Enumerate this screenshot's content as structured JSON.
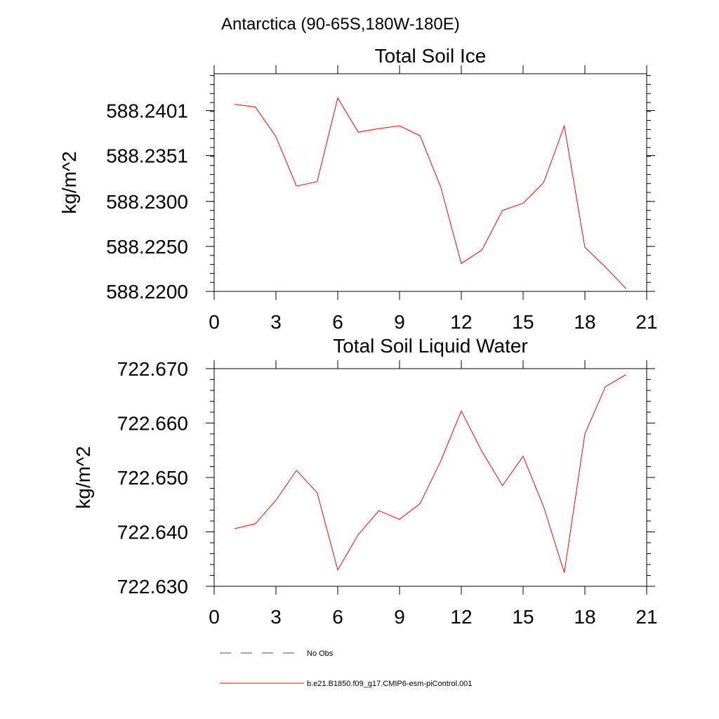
{
  "figure": {
    "title": "Antarctica (90-65S,180W-180E)"
  },
  "chart_data": [
    {
      "type": "line",
      "title": "Total Soil Ice",
      "xlabel": "",
      "ylabel": "kg/m^2",
      "xlim": [
        0,
        21
      ],
      "ylim": [
        588.22,
        588.2442
      ],
      "x_ticks": [
        0,
        3,
        6,
        9,
        12,
        15,
        18,
        21
      ],
      "x_tick_labels": [
        "0",
        "3",
        "6",
        "9",
        "12",
        "15",
        "18",
        "21"
      ],
      "y_ticks": [
        588.22,
        588.225,
        588.23,
        588.2351,
        588.2401
      ],
      "y_tick_labels": [
        "588.2200",
        "588.2250",
        "588.2300",
        "588.2351",
        "588.2401"
      ],
      "x": [
        1,
        2,
        3,
        4,
        5,
        6,
        7,
        8,
        9,
        10,
        11,
        12,
        13,
        14,
        15,
        16,
        17,
        18,
        19,
        20
      ],
      "series": [
        {
          "name": "b.e21.B1850.f09_g17.CMIP6-esm-piControl.001",
          "color": "#ff0000",
          "values": [
            588.2408,
            588.2405,
            588.2372,
            588.2317,
            588.2322,
            588.2415,
            588.2377,
            588.2381,
            588.2384,
            588.2373,
            588.2316,
            588.2231,
            588.2246,
            588.229,
            588.2298,
            588.2321,
            588.2384,
            588.2249,
            588.2227,
            588.2203
          ]
        }
      ]
    },
    {
      "type": "line",
      "title": "Total Soil Liquid Water",
      "xlabel": "",
      "ylabel": "kg/m^2",
      "xlim": [
        0,
        21
      ],
      "ylim": [
        722.63,
        722.67
      ],
      "x_ticks": [
        0,
        3,
        6,
        9,
        12,
        15,
        18,
        21
      ],
      "x_tick_labels": [
        "0",
        "3",
        "6",
        "9",
        "12",
        "15",
        "18",
        "21"
      ],
      "y_ticks": [
        722.63,
        722.64,
        722.65,
        722.66,
        722.67
      ],
      "y_tick_labels": [
        "722.630",
        "722.640",
        "722.650",
        "722.660",
        "722.670"
      ],
      "x": [
        1,
        2,
        3,
        4,
        5,
        6,
        7,
        8,
        9,
        10,
        11,
        12,
        13,
        14,
        15,
        16,
        17,
        18,
        19,
        20
      ],
      "series": [
        {
          "name": "b.e21.B1850.f09_g17.CMIP6-esm-piControl.001",
          "color": "#ff0000",
          "values": [
            722.6406,
            722.6415,
            722.6458,
            722.6513,
            722.6472,
            722.633,
            722.6395,
            722.6439,
            722.6423,
            722.6452,
            722.653,
            722.6622,
            722.6548,
            722.6485,
            722.6539,
            722.6446,
            722.6325,
            722.658,
            722.6667,
            722.6689
          ]
        }
      ]
    }
  ],
  "legend": {
    "items": [
      {
        "label": "No Obs",
        "style": "dashed",
        "color": "#4a4a6a"
      },
      {
        "label": "b.e21.B1850.f09_g17.CMIP6-esm-piControl.001",
        "style": "solid",
        "color": "#ff0000"
      }
    ]
  }
}
